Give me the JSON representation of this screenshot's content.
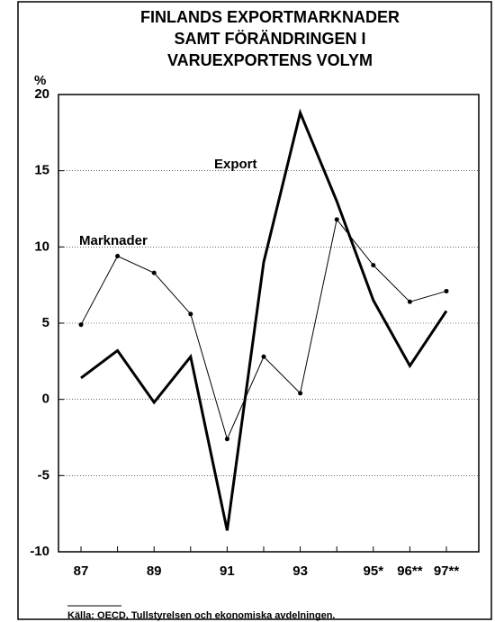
{
  "chart_data": {
    "type": "line",
    "title": "FINLANDS EXPORTMARKNADER SAMT FÖRÄNDRINGEN I VARUEXPORTENS VOLYM",
    "y_label": "%",
    "categories": [
      "87",
      null,
      "89",
      null,
      "91",
      null,
      "93",
      null,
      "95*",
      "96**",
      "97**"
    ],
    "series": [
      {
        "name": "Marknader",
        "color": "#000000",
        "width": 1,
        "marker": true,
        "values": [
          4.9,
          9.4,
          8.3,
          5.6,
          -2.6,
          2.8,
          0.4,
          11.8,
          8.8,
          6.4,
          7.1
        ]
      },
      {
        "name": "Export",
        "color": "#000000",
        "width": 3,
        "marker": false,
        "values": [
          1.4,
          3.2,
          -0.2,
          2.8,
          -8.6,
          9.0,
          18.8,
          13.0,
          6.5,
          2.2,
          5.8
        ]
      }
    ],
    "ylim": [
      -10,
      20
    ],
    "yticks": [
      -10,
      -5,
      0,
      5,
      10,
      15,
      20
    ],
    "grid": true,
    "source": "Källa: OECD, Tullstyrelsen och ekonomiska avdelningen."
  }
}
